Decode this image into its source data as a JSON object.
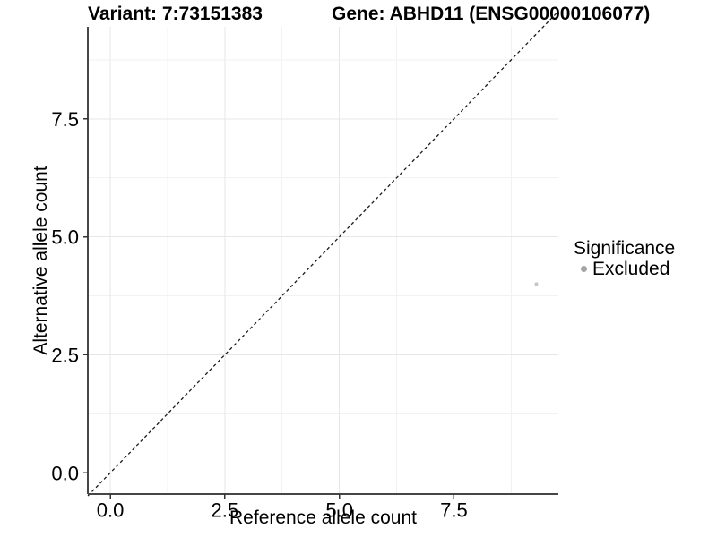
{
  "chart_data": {
    "type": "scatter",
    "title_variant": "Variant: 7:73151383",
    "title_gene": "Gene: ABHD11 (ENSG00000106077)",
    "xlabel": "Reference allele count",
    "ylabel": "Alternative allele count",
    "xlim": [
      -0.49,
      9.78
    ],
    "ylim": [
      -0.45,
      9.45
    ],
    "xticks": [
      0,
      2.5,
      5,
      7.5
    ],
    "yticks": [
      0,
      2.5,
      5,
      7.5
    ],
    "tick_decimals": 1,
    "grid": {
      "major": true,
      "minor": true
    },
    "reference_line": {
      "kind": "identity",
      "slope": 1,
      "intercept": 0,
      "style": "dashed",
      "color": "#1a1a1a"
    },
    "series": [
      {
        "name": "Excluded",
        "color": "#c6c6c6",
        "point_radius": 2,
        "points": [
          {
            "x": 9.3,
            "y": 4.0
          }
        ]
      }
    ],
    "legend": {
      "title": "Significance",
      "position": "right",
      "items": [
        {
          "label": "Excluded",
          "color": "#a5a5a5"
        }
      ]
    },
    "colors": {
      "background": "#ffffff",
      "grid_major": "#e7e7e7",
      "grid_minor": "#f2f2f2",
      "axis_line": "#464646",
      "tick_mark": "#333333",
      "text": "#000000"
    }
  }
}
